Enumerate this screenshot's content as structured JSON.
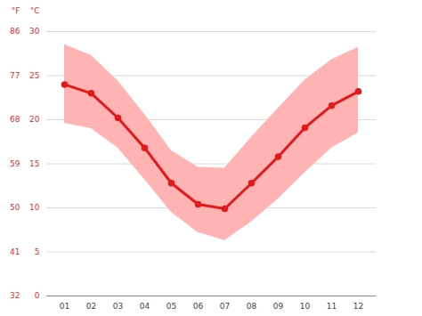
{
  "chart_data": {
    "type": "line",
    "categories": [
      "01",
      "02",
      "03",
      "04",
      "05",
      "06",
      "07",
      "08",
      "09",
      "10",
      "11",
      "12"
    ],
    "values": [
      24.0,
      23.0,
      20.2,
      16.8,
      12.8,
      10.4,
      9.9,
      12.8,
      15.8,
      19.1,
      21.6,
      23.2
    ],
    "color": "#e31a1c",
    "marker": "circle",
    "band": {
      "min": [
        19.6,
        19.0,
        16.8,
        13.2,
        9.5,
        7.2,
        6.3,
        8.4,
        11.0,
        14.0,
        16.8,
        18.5
      ],
      "max": [
        28.5,
        27.3,
        24.4,
        20.6,
        16.5,
        14.6,
        14.5,
        18.0,
        21.3,
        24.5,
        26.8,
        28.2
      ],
      "color": "#ffb3b3"
    },
    "ylabel": "°C",
    "ylim": [
      0,
      30
    ],
    "yticks": [
      0,
      5,
      10,
      15,
      20,
      25,
      30
    ],
    "y2label": "°F",
    "y2lim": [
      32,
      86
    ],
    "y2ticks": [
      32,
      41,
      50,
      59,
      68,
      77,
      86
    ],
    "grid": true
  }
}
